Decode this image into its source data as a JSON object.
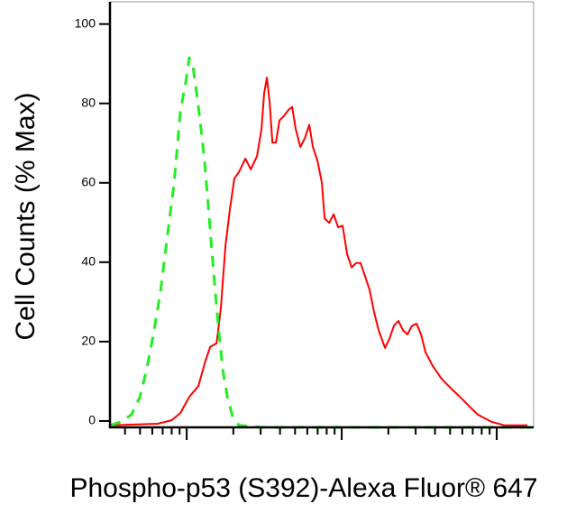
{
  "chart_data": {
    "type": "line",
    "xlabel": "Phospho-p53 (S392)-Alexa Fluor® 647",
    "ylabel": "Cell Counts (% Max)",
    "xscale": "log",
    "xlim": [
      32,
      17300
    ],
    "ylim": [
      -1.6,
      105.6
    ],
    "xticks": [
      40,
      50,
      60,
      70,
      80,
      90,
      100,
      200,
      300,
      400,
      500,
      600,
      700,
      800,
      900,
      1000,
      2000,
      3000,
      4000,
      5000,
      6000,
      7000,
      8000,
      9000,
      10000
    ],
    "yticks": [
      0,
      20,
      40,
      60,
      80,
      100
    ],
    "series": [
      {
        "color": "#ff0000",
        "dash": false,
        "x": [
          32,
          65,
          80,
          91,
          104,
          119,
          132,
          142,
          156,
          166,
          178,
          190,
          203,
          217,
          239,
          259,
          284,
          304,
          316,
          329,
          343,
          357,
          376,
          397,
          425,
          454,
          479,
          505,
          541,
          578,
          618,
          652,
          697,
          745,
          776,
          830,
          887,
          948,
          1014,
          1084,
          1159,
          1239,
          1324,
          1416,
          1514,
          1618,
          1730,
          1901,
          2032,
          2173,
          2323,
          2483,
          2655,
          2838,
          3041,
          3251,
          3475,
          3864,
          4416,
          5047,
          5781,
          6607,
          7551,
          9226,
          11272,
          15776
        ],
        "values": [
          -1.1,
          -0.7,
          0.2,
          2,
          6.1,
          8.8,
          15.1,
          18.7,
          19.6,
          28.5,
          44.3,
          53.3,
          61.1,
          62.7,
          66.1,
          63.4,
          66.7,
          73.5,
          82.5,
          86.5,
          80.2,
          70.1,
          70.1,
          75.7,
          76.9,
          78.4,
          79.1,
          73.5,
          69,
          71.2,
          74.6,
          69,
          65.6,
          60,
          51,
          49.9,
          52.1,
          48.8,
          49.2,
          42,
          38.7,
          39.8,
          39.8,
          36.4,
          33,
          27.4,
          22.9,
          18.4,
          20.7,
          24,
          25.2,
          22.9,
          21.8,
          24,
          24.5,
          21.8,
          17.3,
          13.9,
          10.6,
          8.3,
          6.1,
          3.8,
          1.6,
          -0.2,
          -1.1,
          -1.1
        ]
      },
      {
        "color": "#22ee22",
        "dash": true,
        "x": [
          32,
          38,
          44,
          50,
          55,
          61,
          68,
          75,
          83,
          91,
          99,
          104,
          110,
          116,
          122,
          131,
          140,
          149,
          160,
          171,
          183,
          198,
          217,
          304,
          16866
        ],
        "values": [
          -1.1,
          -0.2,
          1.6,
          6.1,
          12.8,
          21.8,
          33,
          46.5,
          60,
          78,
          85.8,
          91.5,
          89.2,
          82.5,
          75.7,
          64.5,
          51,
          37.5,
          24,
          12.8,
          6.1,
          1.1,
          -1.1,
          -1.6,
          -1.6
        ]
      }
    ]
  }
}
